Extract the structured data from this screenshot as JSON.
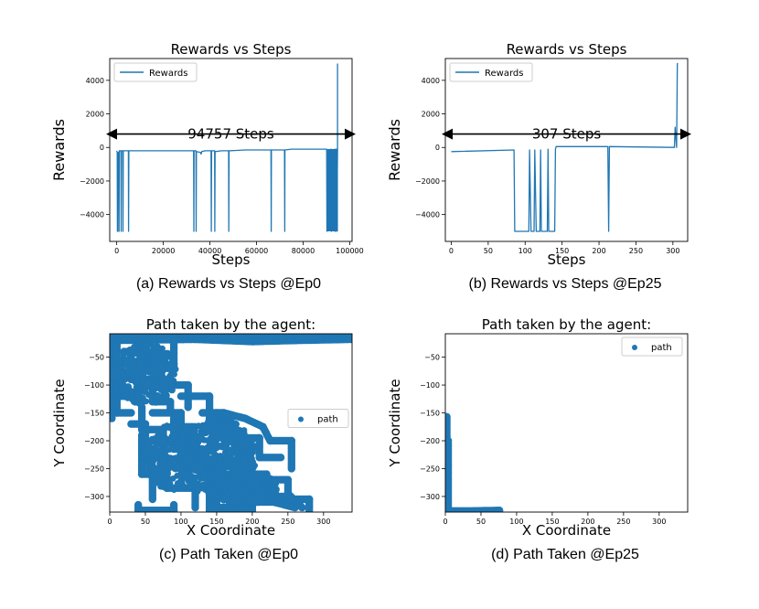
{
  "captions": {
    "a": "(a) Rewards vs Steps @Ep0",
    "b": "(b) Rewards vs Steps @Ep25",
    "c": "(c) Path Taken @Ep0",
    "d": "(d) Path Taken @Ep25"
  },
  "colors": {
    "series": "#1f77b4",
    "axis": "#000000"
  },
  "chart_data": [
    {
      "id": "a",
      "type": "line",
      "title": "Rewards vs Steps",
      "xlabel": "Steps",
      "ylabel": "Rewards",
      "xlim": [
        -3000,
        101000
      ],
      "ylim": [
        -5600,
        5300
      ],
      "xticks": [
        0,
        20000,
        40000,
        60000,
        80000,
        100000
      ],
      "yticks": [
        -4000,
        -2000,
        0,
        2000,
        4000
      ],
      "legend": "top-left",
      "series": [
        {
          "name": "Rewards",
          "x": [
            0,
            200,
            300,
            400,
            500,
            900,
            1000,
            1100,
            1800,
            1900,
            2000,
            2600,
            2700,
            2800,
            5000,
            5100,
            5200,
            33000,
            33100,
            33200,
            34000,
            34100,
            34200,
            36000,
            36200,
            36500,
            38000,
            40500,
            40600,
            40700,
            42000,
            42100,
            42200,
            45000,
            48000,
            48100,
            48200,
            55000,
            65000,
            66200,
            66300,
            66400,
            72000,
            72100,
            72200,
            75000,
            85000,
            90000,
            90100,
            90200,
            92000,
            92100,
            92200,
            93500,
            93600,
            93700,
            94200,
            94300,
            94400,
            94757,
            94758
          ],
          "y": [
            -200,
            -300,
            -5000,
            -5000,
            -300,
            -300,
            -5000,
            -200,
            -200,
            -5000,
            -200,
            -200,
            -5000,
            -200,
            -200,
            -5000,
            -200,
            -200,
            -5000,
            -200,
            -200,
            -5000,
            -250,
            -300,
            -400,
            -250,
            -200,
            -200,
            -5000,
            -200,
            -200,
            -5000,
            -250,
            -200,
            -200,
            -5000,
            -200,
            -150,
            -150,
            -150,
            -5000,
            -150,
            -150,
            -5000,
            -150,
            -100,
            -100,
            -100,
            -100,
            -5000,
            -100,
            -100,
            -5000,
            -100,
            -100,
            -5000,
            -100,
            -100,
            -5000,
            -100,
            5000
          ]
        }
      ],
      "annotation": {
        "text": "94757 Steps",
        "range": [
          -3000,
          101000
        ],
        "y": 800
      }
    },
    {
      "id": "b",
      "type": "line",
      "title": "Rewards vs Steps",
      "xlabel": "Steps",
      "ylabel": "Rewards",
      "xlim": [
        -8,
        320
      ],
      "ylim": [
        -5600,
        5300
      ],
      "xticks": [
        0,
        50,
        100,
        150,
        200,
        250,
        300
      ],
      "yticks": [
        -4000,
        -2000,
        0,
        2000,
        4000
      ],
      "legend": "top-left",
      "series": [
        {
          "name": "Rewards",
          "x": [
            0,
            85,
            86,
            88,
            105,
            106,
            108,
            112,
            113,
            115,
            120,
            121,
            122,
            130,
            131,
            132,
            140,
            141,
            142,
            212,
            213,
            214,
            300,
            302,
            303,
            305,
            306,
            307
          ],
          "y": [
            -250,
            -150,
            -5000,
            -5000,
            -5000,
            -150,
            -5000,
            -5000,
            -150,
            -5000,
            -5000,
            -150,
            -5000,
            -5000,
            -100,
            -5000,
            -5000,
            -100,
            50,
            50,
            -5000,
            50,
            0,
            0,
            1200,
            0,
            5000,
            5000
          ]
        }
      ],
      "annotation": {
        "text": "307 Steps",
        "range": [
          -8,
          320
        ],
        "y": 800
      }
    },
    {
      "id": "c",
      "type": "scatter",
      "title": "Path taken by the agent:",
      "xlabel": "X Coordinate",
      "ylabel": "Y Coordinate",
      "xlim": [
        0,
        340
      ],
      "ylim": [
        -328,
        -8
      ],
      "xticks": [
        0,
        50,
        100,
        150,
        200,
        250,
        300
      ],
      "yticks": [
        -300,
        -250,
        -200,
        -150,
        -100,
        -50
      ],
      "legend": "center-right",
      "series": [
        {
          "name": "path",
          "segments": [
            [
              [
                2,
                -12
              ],
              [
                160,
                -12
              ],
              [
                330,
                -15
              ],
              [
                338,
                -14
              ]
            ],
            [
              [
                2,
                -20
              ],
              [
                120,
                -18
              ],
              [
                200,
                -22
              ],
              [
                260,
                -20
              ],
              [
                338,
                -18
              ]
            ],
            [
              [
                2,
                -8
              ],
              [
                60,
                -10
              ],
              [
                100,
                -8
              ],
              [
                150,
                -10
              ]
            ],
            [
              [
                3,
                -10
              ],
              [
                3,
                -160
              ]
            ],
            [
              [
                3,
                -60
              ],
              [
                40,
                -58
              ],
              [
                40,
                -120
              ],
              [
                5,
                -120
              ]
            ],
            [
              [
                10,
                -20
              ],
              [
                10,
                -150
              ],
              [
                30,
                -150
              ]
            ],
            [
              [
                20,
                -40
              ],
              [
                70,
                -42
              ],
              [
                70,
                -100
              ],
              [
                110,
                -100
              ],
              [
                110,
                -140
              ]
            ],
            [
              [
                50,
                -20
              ],
              [
                50,
                -70
              ],
              [
                90,
                -70
              ],
              [
                90,
                -20
              ]
            ],
            [
              [
                30,
                -90
              ],
              [
                60,
                -90
              ],
              [
                60,
                -130
              ],
              [
                85,
                -130
              ],
              [
                85,
                -150
              ]
            ],
            [
              [
                45,
                -140
              ],
              [
                45,
                -180
              ],
              [
                75,
                -180
              ],
              [
                75,
                -240
              ]
            ],
            [
              [
                100,
                -120
              ],
              [
                140,
                -120
              ],
              [
                140,
                -160
              ],
              [
                170,
                -160
              ]
            ],
            [
              [
                45,
                -190
              ],
              [
                45,
                -260
              ],
              [
                60,
                -260
              ],
              [
                60,
                -305
              ]
            ],
            [
              [
                60,
                -200
              ],
              [
                110,
                -200
              ],
              [
                110,
                -240
              ],
              [
                150,
                -240
              ]
            ],
            [
              [
                90,
                -160
              ],
              [
                90,
                -215
              ],
              [
                130,
                -215
              ],
              [
                130,
                -260
              ]
            ],
            [
              [
                80,
                -230
              ],
              [
                80,
                -285
              ],
              [
                120,
                -285
              ],
              [
                120,
                -320
              ]
            ],
            [
              [
                150,
                -150
              ],
              [
                150,
                -190
              ],
              [
                180,
                -190
              ],
              [
                180,
                -240
              ]
            ],
            [
              [
                140,
                -170
              ],
              [
                175,
                -170
              ],
              [
                175,
                -215
              ],
              [
                200,
                -215
              ]
            ],
            [
              [
                130,
                -150
              ],
              [
                160,
                -150
              ],
              [
                190,
                -160
              ],
              [
                215,
                -175
              ]
            ],
            [
              [
                170,
                -195
              ],
              [
                210,
                -195
              ],
              [
                210,
                -230
              ],
              [
                240,
                -230
              ]
            ],
            [
              [
                150,
                -250
              ],
              [
                150,
                -320
              ],
              [
                180,
                -320
              ],
              [
                180,
                -290
              ]
            ],
            [
              [
                160,
                -260
              ],
              [
                220,
                -260
              ],
              [
                220,
                -300
              ],
              [
                250,
                -300
              ]
            ],
            [
              [
                185,
                -240
              ],
              [
                185,
                -310
              ],
              [
                230,
                -310
              ],
              [
                260,
                -320
              ]
            ],
            [
              [
                200,
                -270
              ],
              [
                250,
                -270
              ],
              [
                250,
                -295
              ],
              [
                270,
                -320
              ]
            ],
            [
              [
                215,
                -175
              ],
              [
                225,
                -200
              ],
              [
                255,
                -200
              ],
              [
                255,
                -250
              ]
            ],
            [
              [
                40,
                -315
              ],
              [
                40,
                -325
              ],
              [
                90,
                -325
              ],
              [
                90,
                -315
              ]
            ],
            [
              [
                140,
                -300
              ],
              [
                140,
                -325
              ],
              [
                200,
                -325
              ],
              [
                200,
                -300
              ]
            ],
            [
              [
                230,
                -305
              ],
              [
                280,
                -305
              ],
              [
                280,
                -325
              ]
            ],
            [
              [
                110,
                -250
              ],
              [
                140,
                -250
              ],
              [
                140,
                -280
              ],
              [
                160,
                -280
              ]
            ],
            [
              [
                60,
                -150
              ],
              [
                100,
                -150
              ],
              [
                100,
                -175
              ],
              [
                120,
                -175
              ]
            ],
            [
              [
                30,
                -170
              ],
              [
                50,
                -170
              ],
              [
                50,
                -230
              ],
              [
                65,
                -230
              ]
            ]
          ],
          "clusters": [
            {
              "cx": 190,
              "cy": -285,
              "rx": 45,
              "ry": 30,
              "n": 700
            },
            {
              "cx": 150,
              "cy": -230,
              "rx": 55,
              "ry": 70,
              "n": 500
            },
            {
              "cx": 90,
              "cy": -230,
              "rx": 40,
              "ry": 60,
              "n": 300
            },
            {
              "cx": 50,
              "cy": -80,
              "rx": 45,
              "ry": 55,
              "n": 300
            }
          ]
        }
      ]
    },
    {
      "id": "d",
      "type": "scatter",
      "title": "Path taken by the agent:",
      "xlabel": "X Coordinate",
      "ylabel": "Y Coordinate",
      "xlim": [
        0,
        340
      ],
      "ylim": [
        -328,
        -8
      ],
      "xticks": [
        0,
        50,
        100,
        150,
        200,
        250,
        300
      ],
      "yticks": [
        -300,
        -250,
        -200,
        -150,
        -100,
        -50
      ],
      "legend": "top-right",
      "series": [
        {
          "name": "path",
          "segments": [
            [
              [
                2,
                -157
              ],
              [
                2,
                -325
              ],
              [
                4,
                -325
              ],
              [
                4,
                -200
              ]
            ],
            [
              [
                2,
                -326
              ],
              [
                40,
                -326
              ],
              [
                76,
                -325
              ]
            ]
          ],
          "clusters": []
        }
      ]
    }
  ]
}
